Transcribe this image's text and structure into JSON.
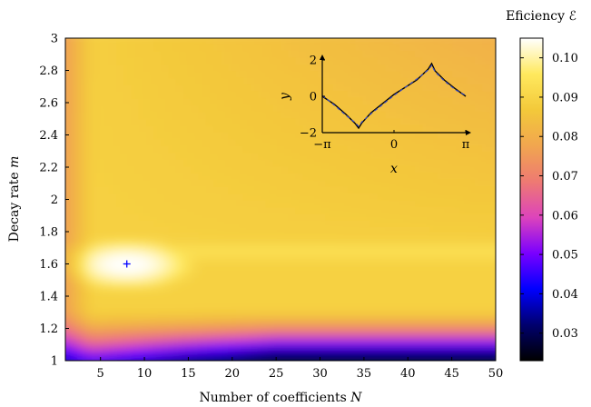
{
  "chart_data": [
    {
      "type": "heatmap",
      "xlabel": "Number of coefficients",
      "xlabel_symbol": "N",
      "ylabel": "Decay rate",
      "ylabel_symbol": "m",
      "xlim": [
        1,
        50
      ],
      "ylim": [
        1,
        3
      ],
      "x_ticks": [
        5,
        10,
        15,
        20,
        25,
        30,
        35,
        40,
        45,
        50
      ],
      "y_ticks": [
        "1",
        "1.2",
        "1.4",
        "1.6",
        "1.8",
        "2",
        "2.2",
        "2.4",
        "2.6",
        "2.8",
        "3"
      ],
      "colorbar": {
        "label": "Eficiency",
        "symbol": "ℰ",
        "range": [
          0.023,
          0.105
        ],
        "ticks": [
          "0.03",
          "0.04",
          "0.05",
          "0.06",
          "0.07",
          "0.08",
          "0.09",
          "0.10"
        ],
        "stops": [
          "#000000",
          "#00006e",
          "#0000ff",
          "#7a00ff",
          "#dd44bb",
          "#ee7a72",
          "#f1a64f",
          "#f3c93a",
          "#ffe95e",
          "#ffffff"
        ]
      },
      "marker": {
        "x": 8,
        "y": 1.6,
        "symbol": "+",
        "color": "#0000ff"
      }
    },
    {
      "type": "line",
      "xlabel": "x",
      "ylabel": "y",
      "xlim": [
        -3.14159,
        3.14159
      ],
      "ylim": [
        -2,
        2
      ],
      "x_ticks": [
        "−π",
        "0",
        "π"
      ],
      "y_ticks": [
        "−2",
        "0",
        "2"
      ],
      "series": [
        {
          "style": "solid",
          "color": "#000000",
          "x": [
            -3.14159,
            -2.6,
            -2.1,
            -1.7,
            -1.55,
            -1.4,
            -1.0,
            0.0,
            1.0,
            1.5,
            1.65,
            1.8,
            2.2,
            2.7,
            3.14159
          ],
          "y": [
            0.0,
            -0.45,
            -1.0,
            -1.5,
            -1.75,
            -1.45,
            -0.9,
            0.1,
            0.9,
            1.5,
            1.8,
            1.4,
            0.9,
            0.4,
            0.0
          ]
        },
        {
          "style": "dashed",
          "color": "#3b4cc0",
          "x": [
            -3.14159,
            -2.6,
            -2.1,
            -1.7,
            -1.55,
            -1.4,
            -1.0,
            0.0,
            1.0,
            1.5,
            1.65,
            1.8,
            2.2,
            2.7,
            3.14159
          ],
          "y": [
            0.05,
            -0.5,
            -1.05,
            -1.45,
            -1.65,
            -1.4,
            -0.95,
            0.05,
            0.95,
            1.45,
            1.7,
            1.35,
            0.85,
            0.35,
            0.05
          ]
        }
      ]
    }
  ]
}
